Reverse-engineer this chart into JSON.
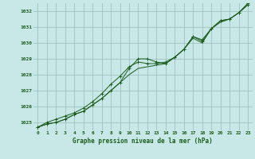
{
  "x": [
    0,
    1,
    2,
    3,
    4,
    5,
    6,
    7,
    8,
    9,
    10,
    11,
    12,
    13,
    14,
    15,
    16,
    17,
    18,
    19,
    20,
    21,
    22,
    23
  ],
  "line1": [
    1024.7,
    1024.9,
    1025.0,
    1025.2,
    1025.5,
    1025.7,
    1026.1,
    1026.5,
    1027.0,
    1027.5,
    1028.4,
    1029.0,
    1029.0,
    1028.8,
    1028.7,
    1029.1,
    1029.6,
    1030.4,
    1030.1,
    1030.9,
    1031.4,
    1031.5,
    1031.9,
    1032.4
  ],
  "line2": [
    1024.7,
    1025.0,
    1025.2,
    1025.4,
    1025.6,
    1025.9,
    1026.3,
    1026.8,
    1027.4,
    1027.9,
    1028.5,
    1028.8,
    1028.7,
    1028.7,
    1028.8,
    1029.1,
    1029.6,
    1030.4,
    1030.2,
    1030.9,
    1031.4,
    1031.5,
    1031.9,
    1032.5
  ],
  "line3": [
    1024.7,
    1024.9,
    1025.0,
    1025.2,
    1025.5,
    1025.7,
    1026.1,
    1026.5,
    1027.0,
    1027.5,
    1028.0,
    1028.4,
    1028.5,
    1028.6,
    1028.7,
    1029.1,
    1029.6,
    1030.3,
    1030.0,
    1030.9,
    1031.3,
    1031.5,
    1031.9,
    1032.4
  ],
  "ylim": [
    1024.5,
    1032.5
  ],
  "yticks": [
    1025,
    1026,
    1027,
    1028,
    1029,
    1030,
    1031,
    1032
  ],
  "xlim": [
    -0.5,
    23.5
  ],
  "xlabel": "Graphe pression niveau de la mer (hPa)",
  "line_color": "#1a5c1a",
  "marker": "+",
  "bg_color": "#c8e8e8",
  "grid_color": "#9ab8b8",
  "tick_color": "#1a5c1a",
  "label_color": "#1a5c1a"
}
